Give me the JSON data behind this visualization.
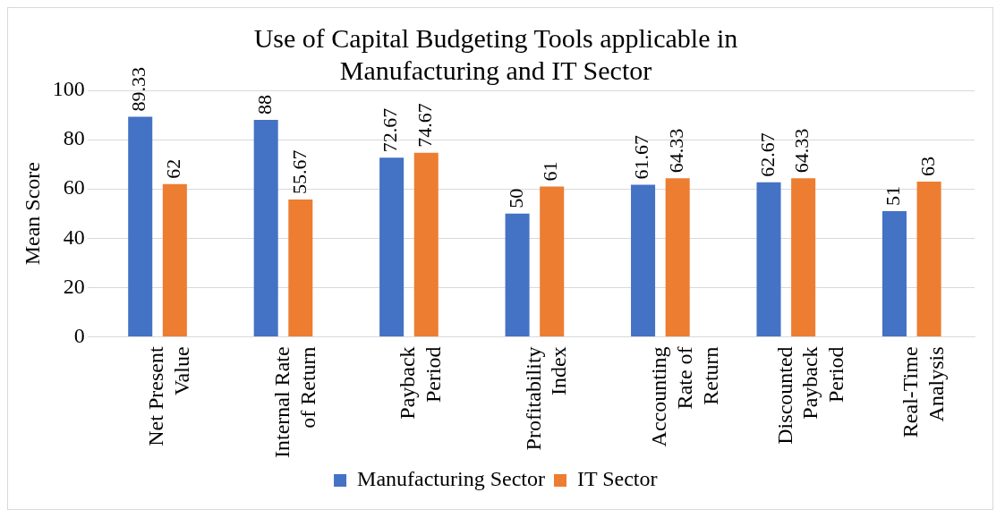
{
  "chart_data": {
    "type": "bar",
    "title": "Use of Capital Budgeting Tools applicable in Manufacturing and IT Sector",
    "ylabel": "Mean Score",
    "categories": [
      "Net Present Value",
      "Internal Rate of Return",
      "Payback Period",
      "Profitability Index",
      "Accounting Rate of Return",
      "Discounted Payback Period",
      "Real-Time Analysis"
    ],
    "series": [
      {
        "name": "Manufacturing Sector",
        "color": "#4472c4",
        "values": [
          89.33,
          88,
          72.67,
          50,
          61.67,
          62.67,
          51
        ]
      },
      {
        "name": "IT Sector",
        "color": "#ed7d31",
        "values": [
          62,
          55.67,
          74.67,
          61,
          64.33,
          64.33,
          63
        ]
      }
    ],
    "ylim": [
      0,
      100
    ],
    "yticks": [
      0,
      20,
      40,
      60,
      80,
      100
    ],
    "grid": "y",
    "legend": "bottom",
    "data_labels": true
  }
}
